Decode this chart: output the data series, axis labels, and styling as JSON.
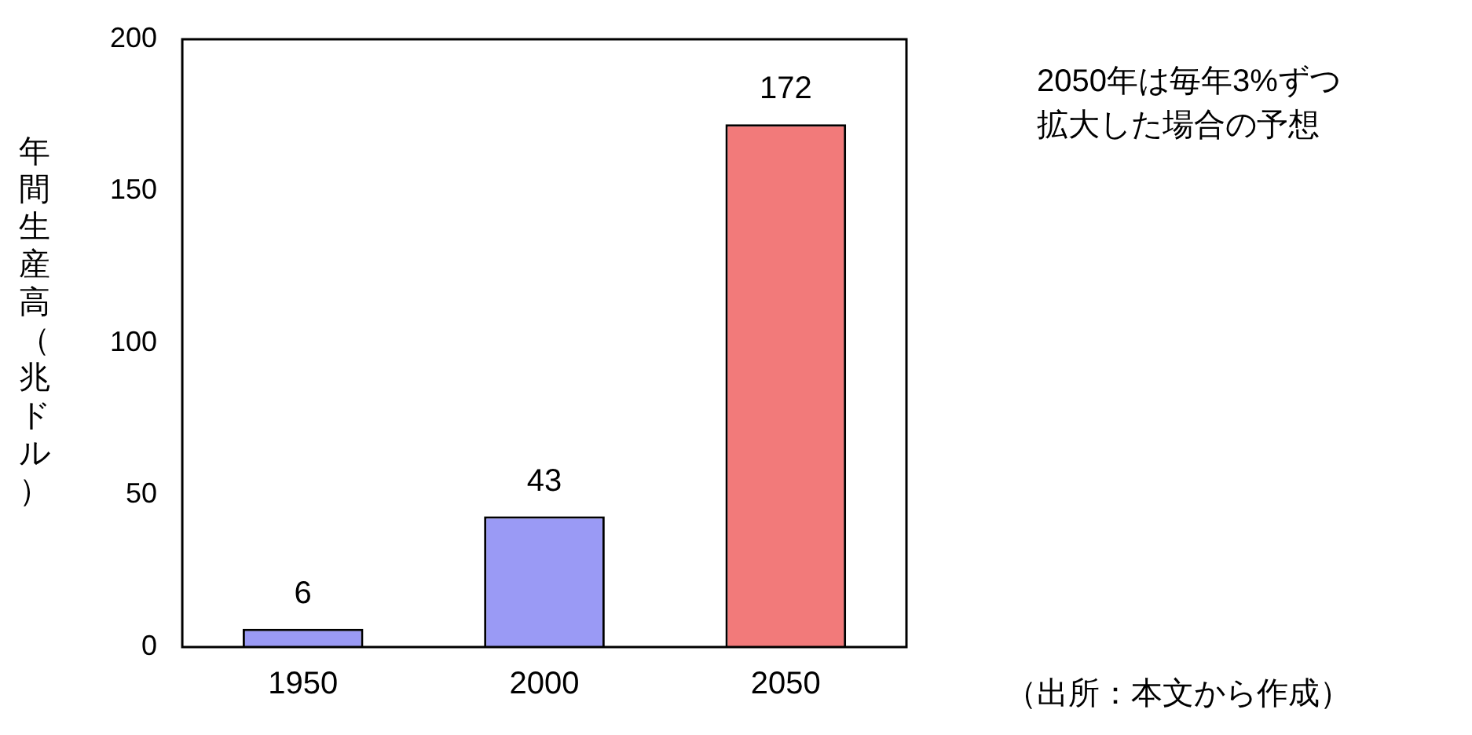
{
  "chart_data": {
    "type": "bar",
    "ylabel": "年間生産高（兆ドル）",
    "categories": [
      "1950",
      "2000",
      "2050"
    ],
    "values": [
      6,
      43,
      172
    ],
    "colors": [
      "#9a9af5",
      "#9a9af5",
      "#f27a7a"
    ],
    "ylim": [
      0,
      200
    ],
    "yticks": [
      0,
      50,
      100,
      150,
      200
    ],
    "grid": false,
    "legend": false,
    "data_labels": true,
    "annotations": [
      "2050年は毎年3%ずつ拡大した場合の予想",
      "（出所：本文から作成）"
    ]
  }
}
